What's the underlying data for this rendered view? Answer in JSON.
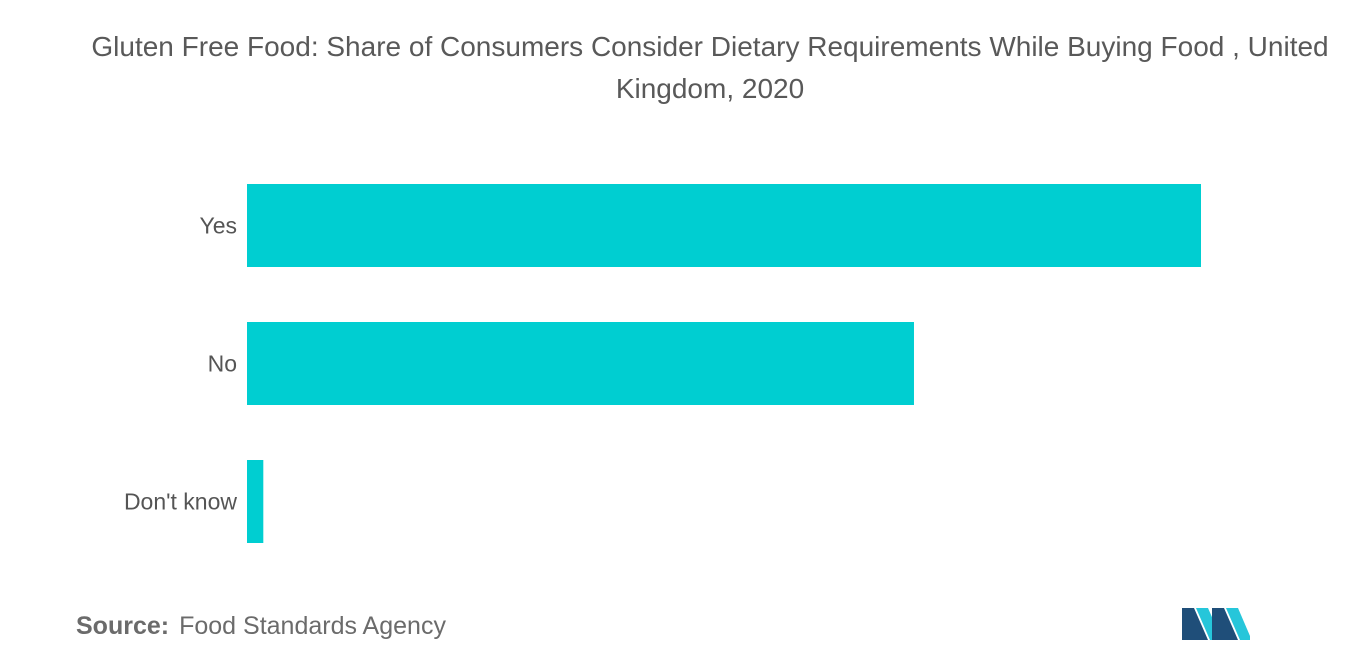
{
  "title": "Gluten Free Food: Share of Consumers Consider Dietary Requirements While Buying Food , United Kingdom, 2020",
  "source": {
    "label": "Source:",
    "text": "Food Standards Agency"
  },
  "colors": {
    "bar": "#00CED1",
    "logo_dark": "#1f4e79",
    "logo_light": "#26c6da"
  },
  "chart_data": {
    "type": "bar",
    "orientation": "horizontal",
    "title": "Gluten Free Food: Share of Consumers Consider Dietary Requirements While Buying Food , United Kingdom, 2020",
    "categories": [
      "Yes",
      "No",
      "Don't know"
    ],
    "values": [
      58.5,
      40.9,
      1.0
    ],
    "xlabel": "",
    "ylabel": "",
    "xlim": [
      0,
      60
    ],
    "grid": false,
    "legend": "none"
  }
}
